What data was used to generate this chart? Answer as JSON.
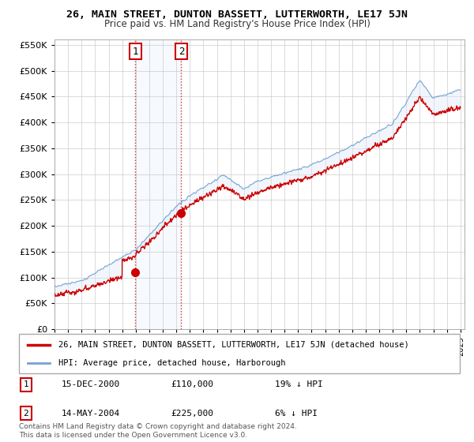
{
  "title": "26, MAIN STREET, DUNTON BASSETT, LUTTERWORTH, LE17 5JN",
  "subtitle": "Price paid vs. HM Land Registry's House Price Index (HPI)",
  "x_start_year": 1995,
  "x_end_year": 2025,
  "y_min": 0,
  "y_max": 560000,
  "y_ticks": [
    0,
    50000,
    100000,
    150000,
    200000,
    250000,
    300000,
    350000,
    400000,
    450000,
    500000,
    550000
  ],
  "sale1_year": 2000.96,
  "sale1_price": 110000,
  "sale1_label": "1",
  "sale1_date": "15-DEC-2000",
  "sale1_hpi_diff": "19% ↓ HPI",
  "sale1_price_str": "£110,000",
  "sale2_year": 2004.37,
  "sale2_price": 225000,
  "sale2_label": "2",
  "sale2_date": "14-MAY-2004",
  "sale2_hpi_diff": "6% ↓ HPI",
  "sale2_price_str": "£225,000",
  "line_color_red": "#cc0000",
  "line_color_blue": "#6699cc",
  "shade_color": "#dce8f8",
  "grid_color": "#cccccc",
  "legend_line1": "26, MAIN STREET, DUNTON BASSETT, LUTTERWORTH, LE17 5JN (detached house)",
  "legend_line2": "HPI: Average price, detached house, Harborough",
  "footnote": "Contains HM Land Registry data © Crown copyright and database right 2024.\nThis data is licensed under the Open Government Licence v3.0.",
  "marker_box_color": "#cc0000",
  "hpi_seed": 17,
  "red_seed": 99
}
